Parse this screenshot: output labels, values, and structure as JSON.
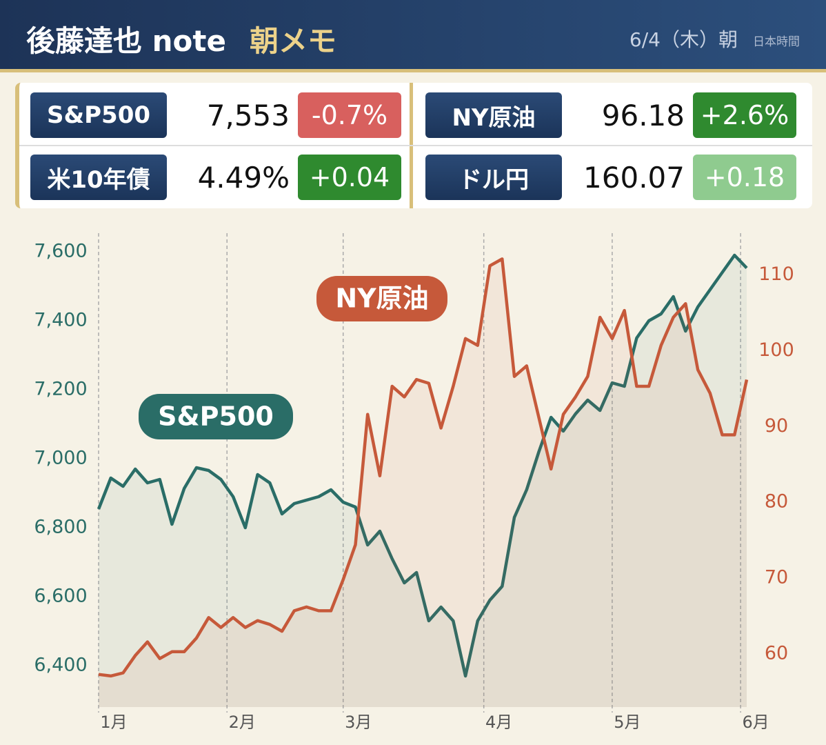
{
  "header": {
    "title": "後藤達也 note",
    "subtitle": "朝メモ",
    "date": "6/4（木）朝",
    "timezone": "日本時間"
  },
  "quotes": [
    {
      "label": "S&P500",
      "value": "7,553",
      "change": "-0.7%",
      "color": "#d8605e"
    },
    {
      "label": "NY原油",
      "value": "96.18",
      "change": "+2.6%",
      "color": "#2f8a2f"
    },
    {
      "label": "米10年債",
      "value": "4.49%",
      "change": "+0.04",
      "color": "#2f8a2f"
    },
    {
      "label": "ドル円",
      "value": "160.07",
      "change": "+0.18",
      "color": "#8fcb8f"
    }
  ],
  "chart_data": {
    "type": "line",
    "x": [
      0,
      2,
      4,
      6,
      8,
      10,
      12,
      14,
      16,
      18,
      20,
      22,
      24,
      26,
      28,
      30,
      32,
      34,
      36,
      38,
      40,
      42,
      44,
      46,
      48,
      50,
      52,
      54,
      56,
      58,
      60,
      62,
      64,
      66,
      68,
      70,
      72,
      74,
      76,
      78,
      80,
      82,
      84,
      86,
      88,
      90,
      92,
      94,
      96,
      98,
      100,
      102,
      104,
      106
    ],
    "xlim": [
      0,
      106
    ],
    "xticks": [
      {
        "value": 0,
        "label": "1月"
      },
      {
        "value": 21,
        "label": "2月"
      },
      {
        "value": 40,
        "label": "3月"
      },
      {
        "value": 63,
        "label": "4月"
      },
      {
        "value": 84,
        "label": "5月"
      },
      {
        "value": 105,
        "label": "6月"
      }
    ],
    "ylim": [
      6280,
      7654
    ],
    "yticks": [
      {
        "value": 6400,
        "label": "6,400"
      },
      {
        "value": 6600,
        "label": "6,600"
      },
      {
        "value": 6800,
        "label": "6,800"
      },
      {
        "value": 7000,
        "label": "7,000"
      },
      {
        "value": 7200,
        "label": "7,200"
      },
      {
        "value": 7400,
        "label": "7,400"
      },
      {
        "value": 7600,
        "label": "7,600"
      }
    ],
    "y2lim": [
      53,
      115.5
    ],
    "y2ticks": [
      60,
      70,
      80,
      90,
      100,
      110
    ],
    "grid": true,
    "series": [
      {
        "name": "S&P500",
        "color": "#2a6d67",
        "values": [
          6854,
          6944,
          6920,
          6970,
          6930,
          6940,
          6810,
          6914,
          6974,
          6966,
          6940,
          6890,
          6800,
          6954,
          6930,
          6840,
          6870,
          6880,
          6890,
          6910,
          6874,
          6860,
          6750,
          6790,
          6710,
          6640,
          6670,
          6530,
          6570,
          6530,
          6370,
          6530,
          6590,
          6630,
          6830,
          6910,
          7020,
          7120,
          7080,
          7130,
          7170,
          7140,
          7220,
          7210,
          7350,
          7400,
          7420,
          7470,
          7370,
          7440,
          7490,
          7540,
          7590,
          7553
        ]
      },
      {
        "name": "NY原油",
        "color": "#c6593a",
        "axis": "y2",
        "values": [
          57.3,
          57.1,
          57.5,
          59.8,
          61.6,
          59.4,
          60.3,
          60.3,
          62.1,
          64.8,
          63.5,
          64.8,
          63.5,
          64.4,
          63.9,
          63.0,
          65.7,
          66.2,
          65.7,
          65.7,
          69.8,
          74.4,
          91.6,
          83.5,
          95.3,
          93.9,
          96.2,
          95.7,
          89.8,
          95.3,
          101.6,
          100.7,
          111.2,
          112.1,
          96.6,
          98.0,
          91.2,
          84.4,
          91.6,
          93.9,
          96.6,
          104.4,
          101.6,
          105.3,
          95.3,
          95.3,
          100.7,
          104.4,
          106.2,
          97.5,
          94.4,
          88.9,
          88.9,
          96.18
        ]
      }
    ]
  }
}
